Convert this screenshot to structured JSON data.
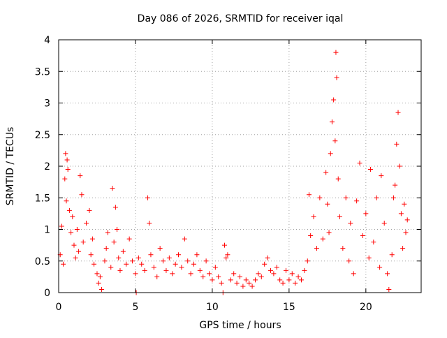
{
  "chart_data": {
    "type": "scatter",
    "title": "Day 086 of 2026, SRMTID for receiver iqal",
    "xlabel": "GPS time / hours",
    "ylabel": "SRMTID / TECUs",
    "xlim": [
      0,
      23.6
    ],
    "ylim": [
      0,
      4
    ],
    "x_ticks": [
      0,
      5,
      10,
      15,
      20
    ],
    "x_tick_labels": [
      "0",
      "5",
      "10",
      "15",
      "20"
    ],
    "y_ticks": [
      0,
      0.5,
      1,
      1.5,
      2,
      2.5,
      3,
      3.5,
      4
    ],
    "y_tick_labels": [
      "0",
      "0.5",
      "1",
      "1.5",
      "2",
      "2.5",
      "3",
      "3.5",
      "4"
    ],
    "grid": true,
    "marker": "+",
    "color": "#ff0000",
    "series": [
      {
        "name": "SRMTID",
        "points": [
          [
            0.1,
            0.6
          ],
          [
            0.2,
            1.05
          ],
          [
            0.3,
            0.45
          ],
          [
            0.4,
            1.8
          ],
          [
            0.45,
            2.2
          ],
          [
            0.5,
            1.45
          ],
          [
            0.55,
            2.1
          ],
          [
            0.6,
            1.95
          ],
          [
            0.7,
            1.3
          ],
          [
            0.8,
            0.95
          ],
          [
            0.9,
            1.2
          ],
          [
            1.0,
            0.75
          ],
          [
            1.1,
            0.55
          ],
          [
            1.2,
            1.0
          ],
          [
            1.3,
            0.65
          ],
          [
            1.4,
            1.85
          ],
          [
            1.5,
            1.55
          ],
          [
            1.6,
            0.8
          ],
          [
            1.8,
            1.1
          ],
          [
            2.0,
            1.3
          ],
          [
            2.1,
            0.6
          ],
          [
            2.2,
            0.85
          ],
          [
            2.3,
            0.45
          ],
          [
            2.5,
            0.3
          ],
          [
            2.6,
            0.15
          ],
          [
            2.7,
            0.25
          ],
          [
            2.8,
            0.05
          ],
          [
            3.0,
            0.5
          ],
          [
            3.1,
            0.7
          ],
          [
            3.2,
            0.95
          ],
          [
            3.4,
            0.4
          ],
          [
            3.5,
            1.65
          ],
          [
            3.6,
            0.8
          ],
          [
            3.7,
            1.35
          ],
          [
            3.8,
            1.0
          ],
          [
            3.9,
            0.55
          ],
          [
            4.0,
            0.35
          ],
          [
            4.2,
            0.65
          ],
          [
            4.4,
            0.45
          ],
          [
            4.6,
            0.85
          ],
          [
            4.8,
            0.5
          ],
          [
            5.0,
            0.3
          ],
          [
            5.05,
            0.0
          ],
          [
            5.2,
            0.55
          ],
          [
            5.4,
            0.45
          ],
          [
            5.6,
            0.35
          ],
          [
            5.8,
            1.5
          ],
          [
            5.9,
            1.1
          ],
          [
            6.0,
            0.6
          ],
          [
            6.2,
            0.4
          ],
          [
            6.4,
            0.25
          ],
          [
            6.6,
            0.7
          ],
          [
            6.8,
            0.5
          ],
          [
            7.0,
            0.35
          ],
          [
            7.2,
            0.55
          ],
          [
            7.4,
            0.3
          ],
          [
            7.6,
            0.45
          ],
          [
            7.8,
            0.6
          ],
          [
            8.0,
            0.4
          ],
          [
            8.2,
            0.85
          ],
          [
            8.4,
            0.5
          ],
          [
            8.6,
            0.3
          ],
          [
            8.8,
            0.45
          ],
          [
            9.0,
            0.6
          ],
          [
            9.2,
            0.35
          ],
          [
            9.4,
            0.25
          ],
          [
            9.6,
            0.5
          ],
          [
            9.8,
            0.3
          ],
          [
            10.0,
            0.2
          ],
          [
            10.2,
            0.4
          ],
          [
            10.4,
            0.25
          ],
          [
            10.6,
            0.15
          ],
          [
            10.7,
            0.0
          ],
          [
            10.8,
            0.75
          ],
          [
            10.9,
            0.55
          ],
          [
            11.0,
            0.6
          ],
          [
            11.2,
            0.2
          ],
          [
            11.4,
            0.3
          ],
          [
            11.6,
            0.15
          ],
          [
            11.8,
            0.25
          ],
          [
            12.0,
            0.1
          ],
          [
            12.2,
            0.2
          ],
          [
            12.4,
            0.15
          ],
          [
            12.6,
            0.1
          ],
          [
            12.8,
            0.2
          ],
          [
            13.0,
            0.3
          ],
          [
            13.2,
            0.25
          ],
          [
            13.4,
            0.45
          ],
          [
            13.6,
            0.55
          ],
          [
            13.8,
            0.35
          ],
          [
            14.0,
            0.3
          ],
          [
            14.2,
            0.4
          ],
          [
            14.4,
            0.2
          ],
          [
            14.6,
            0.15
          ],
          [
            14.8,
            0.35
          ],
          [
            15.0,
            0.2
          ],
          [
            15.2,
            0.3
          ],
          [
            15.4,
            0.15
          ],
          [
            15.6,
            0.25
          ],
          [
            15.8,
            0.2
          ],
          [
            16.0,
            0.35
          ],
          [
            16.2,
            0.5
          ],
          [
            16.3,
            1.55
          ],
          [
            16.4,
            0.9
          ],
          [
            16.6,
            1.2
          ],
          [
            16.8,
            0.7
          ],
          [
            17.0,
            1.5
          ],
          [
            17.2,
            0.85
          ],
          [
            17.4,
            1.9
          ],
          [
            17.5,
            1.4
          ],
          [
            17.6,
            0.95
          ],
          [
            17.7,
            2.2
          ],
          [
            17.8,
            2.7
          ],
          [
            17.9,
            3.05
          ],
          [
            18.0,
            2.4
          ],
          [
            18.05,
            3.8
          ],
          [
            18.1,
            3.4
          ],
          [
            18.2,
            1.8
          ],
          [
            18.3,
            1.2
          ],
          [
            18.5,
            0.7
          ],
          [
            18.7,
            1.5
          ],
          [
            18.9,
            0.5
          ],
          [
            19.0,
            1.1
          ],
          [
            19.2,
            0.3
          ],
          [
            19.4,
            1.45
          ],
          [
            19.6,
            2.05
          ],
          [
            19.8,
            0.9
          ],
          [
            20.0,
            1.25
          ],
          [
            20.2,
            0.55
          ],
          [
            20.3,
            1.95
          ],
          [
            20.5,
            0.8
          ],
          [
            20.7,
            1.5
          ],
          [
            20.9,
            0.4
          ],
          [
            21.0,
            1.85
          ],
          [
            21.2,
            1.1
          ],
          [
            21.4,
            0.3
          ],
          [
            21.5,
            0.05
          ],
          [
            21.7,
            0.6
          ],
          [
            21.8,
            1.5
          ],
          [
            21.9,
            1.7
          ],
          [
            22.0,
            2.35
          ],
          [
            22.1,
            2.85
          ],
          [
            22.2,
            2.0
          ],
          [
            22.3,
            1.25
          ],
          [
            22.4,
            0.7
          ],
          [
            22.5,
            1.4
          ],
          [
            22.6,
            0.95
          ],
          [
            22.7,
            1.15
          ]
        ]
      }
    ]
  }
}
